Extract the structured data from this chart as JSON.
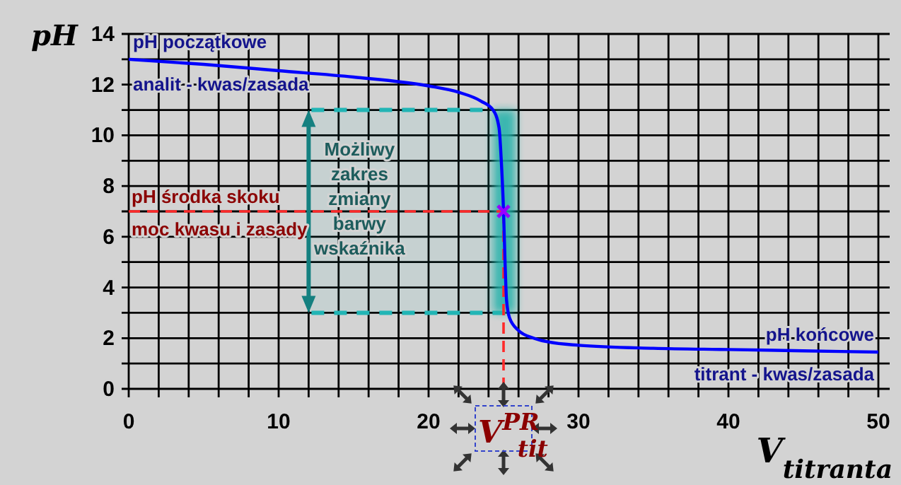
{
  "chart_data": {
    "type": "line",
    "xlabel": "V$_{titranta}$",
    "ylabel": "pH",
    "xlim": [
      0,
      50
    ],
    "ylim": [
      0,
      14
    ],
    "xticks": [
      0,
      {
        "value": 2,
        "label": null
      },
      {
        "value": 4,
        "label": null
      },
      {
        "value": 6,
        "label": null
      },
      {
        "value": 8,
        "label": null
      },
      10,
      {
        "value": 12,
        "label": null
      },
      {
        "value": 14,
        "label": null
      },
      {
        "value": 16,
        "label": null
      },
      {
        "value": 18,
        "label": null
      },
      20,
      {
        "value": 22,
        "label": null
      },
      {
        "value": 24,
        "label": null
      },
      {
        "value": 26,
        "label": null
      },
      {
        "value": 28,
        "label": null
      },
      30,
      {
        "value": 32,
        "label": null
      },
      {
        "value": 34,
        "label": null
      },
      {
        "value": 36,
        "label": null
      },
      {
        "value": 38,
        "label": null
      },
      40,
      {
        "value": 42,
        "label": null
      },
      {
        "value": 44,
        "label": null
      },
      {
        "value": 46,
        "label": null
      },
      {
        "value": 48,
        "label": null
      },
      50
    ],
    "yticks": [
      0,
      {
        "value": 1,
        "label": null
      },
      2,
      {
        "value": 3,
        "label": null
      },
      4,
      {
        "value": 5,
        "label": null
      },
      6,
      {
        "value": 7,
        "label": null
      },
      8,
      {
        "value": 9,
        "label": null
      },
      10,
      {
        "value": 11,
        "label": null
      },
      12,
      {
        "value": 13,
        "label": null
      },
      14
    ],
    "grid": true,
    "series": [
      {
        "type": "line",
        "color": "#0000ff",
        "x": [
          0,
          5,
          10,
          15,
          20,
          22,
          23.5,
          24.3,
          24.7,
          24.85,
          25,
          25.1,
          25.2,
          25.4,
          26,
          27,
          28,
          30,
          35,
          40,
          45,
          50
        ],
        "values": [
          13,
          12.8,
          12.55,
          12.3,
          11.95,
          11.7,
          11.35,
          11,
          10.3,
          9,
          7,
          5,
          3.5,
          2.8,
          2.3,
          2,
          1.85,
          1.72,
          1.6,
          1.55,
          1.5,
          1.45
        ]
      },
      {
        "type": "scatter",
        "color": "#9900ff",
        "marker": "cross",
        "x": [
          25
        ],
        "values": [
          7
        ]
      }
    ],
    "ref_lines": [
      {
        "axis": "y",
        "value": 7,
        "label": "pH środka skoku\nmoc kwasu i zasady",
        "color": "#ff2a2a",
        "line_style": "dashed"
      },
      {
        "axis": "x",
        "value": 25,
        "label": "V$^{PR}$$_{tit}$",
        "color": "#ff2a2a",
        "line_style": "dashed"
      }
    ],
    "bands": [
      {
        "axis": "y",
        "from": 3,
        "to": 11,
        "label": "Możliwy\nzakres\nzmiany\nbarwy\nwskaźnika",
        "color": "#22b5b5"
      },
      {
        "axis": "x",
        "from": 24.3,
        "to": 25.8,
        "color": "#20b2aa"
      }
    ],
    "annotations": [
      {
        "text": "pH początkowe\nanalit - kwas/zasada",
        "x": 0,
        "y": 13
      },
      {
        "text": "pH końcowe\ntitrant - kwas/zasada",
        "x": 50,
        "y": 1.45
      }
    ]
  }
}
